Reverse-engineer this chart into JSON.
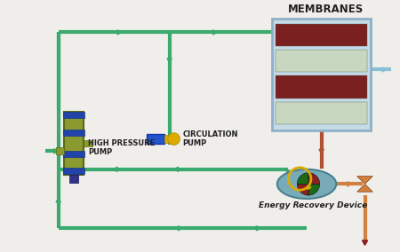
{
  "bg_color": "#f0eeea",
  "pipe_green": "#3aaa6e",
  "pipe_brown": "#b05030",
  "pipe_blue": "#88bfd4",
  "pipe_orange": "#d08040",
  "pipe_dark_red": "#8b2020",
  "membrane_label": "MEMBRANES",
  "pump_hp_label": "HIGH PRESSURE\nPUMP",
  "pump_circ_label": "CIRCULATION\nPUMP",
  "erd_label": "Energy Recovery Device",
  "label_color": "#222222",
  "mem_box_color": "#b8d8e8",
  "mem_box_edge": "#90b0c8",
  "mem_stripe_dark": "#7a2020",
  "mem_stripe_light": "#c8d8c0",
  "hp_pump_body": "#8a9a30",
  "hp_pump_band": "#2244aa",
  "circ_pump_blue": "#2255cc",
  "circ_pump_yellow": "#ddaa00",
  "erd_body": "#5a9090",
  "erd_green": "#1a6a1a",
  "erd_red": "#8b2020",
  "erd_yellow": "#ddaa00",
  "valve_color": "#d08040",
  "figsize": [
    4.5,
    2.84
  ],
  "dpi": 100,
  "xlim": [
    0,
    450
  ],
  "ylim": [
    284,
    0
  ]
}
